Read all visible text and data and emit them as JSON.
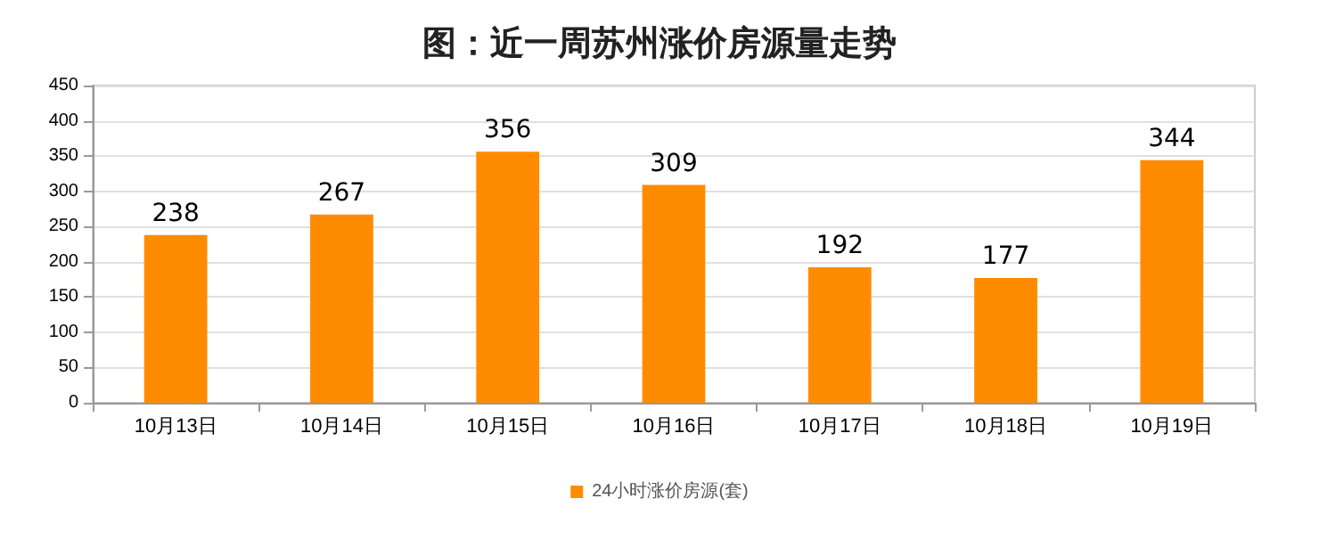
{
  "chart_data": {
    "type": "bar",
    "title": "图：近一周苏州涨价房源量走势",
    "categories": [
      "10月13日",
      "10月14日",
      "10月15日",
      "10月16日",
      "10月17日",
      "10月18日",
      "10月19日"
    ],
    "series": [
      {
        "name": "24小时涨价房源(套)",
        "color": "#ff8c00",
        "values": [
          238,
          267,
          356,
          309,
          192,
          177,
          344
        ]
      }
    ],
    "ylim": [
      0,
      450
    ],
    "yticks": [
      0,
      50,
      100,
      150,
      200,
      250,
      300,
      350,
      400,
      450
    ],
    "grid": "y",
    "legend": "bottom",
    "data_labels": true
  }
}
